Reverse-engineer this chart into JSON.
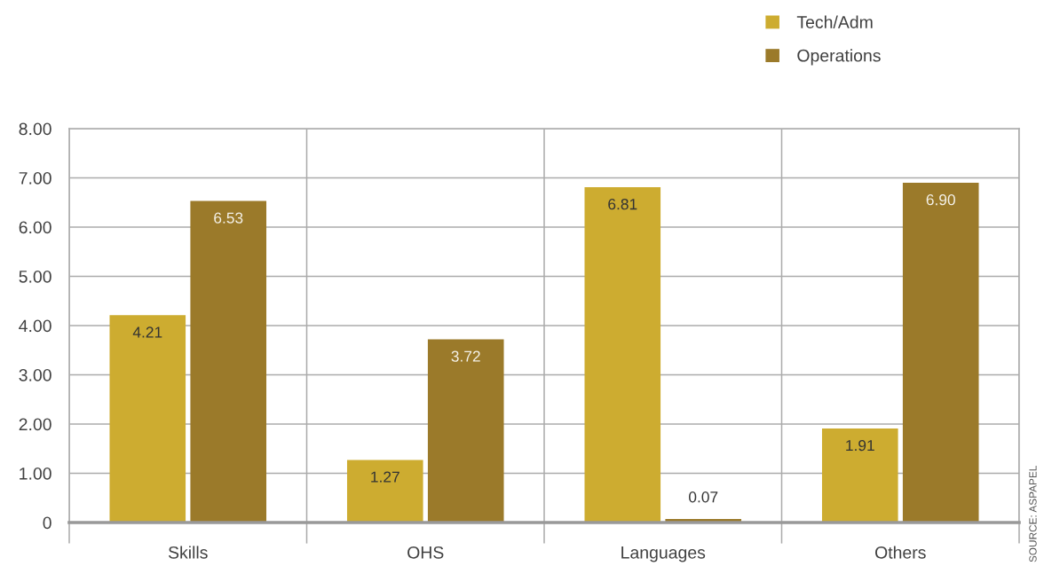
{
  "chart_data": {
    "type": "bar",
    "categories": [
      "Skills",
      "OHS",
      "Languages",
      "Others"
    ],
    "series": [
      {
        "name": "Tech/Adm",
        "color": "#cdac30",
        "values": [
          4.21,
          1.27,
          6.81,
          1.91
        ],
        "value_labels": [
          "4.21",
          "1.27",
          "6.81",
          "1.91"
        ]
      },
      {
        "name": "Operations",
        "color": "#9b7a2a",
        "values": [
          6.53,
          3.72,
          0.07,
          6.9
        ],
        "value_labels": [
          "6.53",
          "3.72",
          "0.07",
          "6.90"
        ]
      }
    ],
    "ylim": [
      0,
      8
    ],
    "yticks": [
      0,
      {
        "value": 1,
        "label": "1.00"
      },
      {
        "value": 2,
        "label": "2.00"
      },
      {
        "value": 3,
        "label": "3.00"
      },
      {
        "value": 4,
        "label": "4.00"
      },
      {
        "value": 5,
        "label": "5.00"
      },
      {
        "value": 6,
        "label": "6.00"
      },
      {
        "value": 7,
        "label": "7.00"
      },
      {
        "value": 8,
        "label": "8.00"
      }
    ],
    "grid": true,
    "legend": "top right",
    "annotations": [
      "SOURCE: ASPAPEL"
    ]
  }
}
